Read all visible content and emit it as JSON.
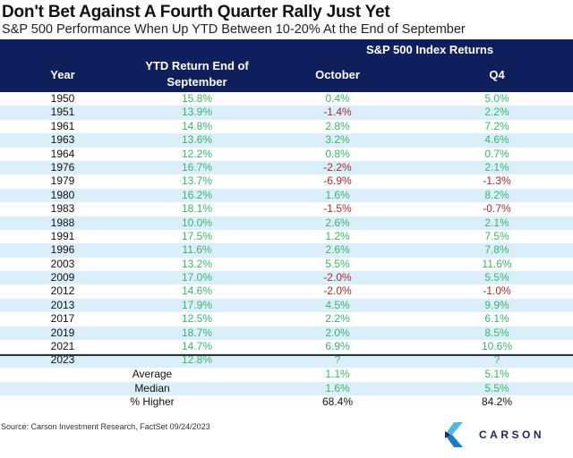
{
  "title": "Don't Bet Against A Fourth Quarter Rally Just Yet",
  "subtitle": "S&P 500 Performance When Up YTD Between 10-20% At the End of September",
  "header": {
    "group": "S&P 500 Index Returns",
    "year": "Year",
    "ytd_line1": "YTD Return End of",
    "ytd_line2": "September",
    "october": "October",
    "q4": "Q4"
  },
  "colors": {
    "header_bg": "#0f1f5c",
    "stripe": "#dbeffb",
    "positive": "#3db36b",
    "negative": "#a52a2a"
  },
  "chart_data": {
    "type": "table",
    "columns": [
      "Year",
      "YTD Return End of September",
      "October",
      "Q4"
    ],
    "rows": [
      [
        "1950",
        "15.8%",
        "0.4%",
        "5.0%"
      ],
      [
        "1951",
        "13.9%",
        "-1.4%",
        "2.2%"
      ],
      [
        "1961",
        "14.8%",
        "2.8%",
        "7.2%"
      ],
      [
        "1963",
        "13.6%",
        "3.2%",
        "4.6%"
      ],
      [
        "1964",
        "12.2%",
        "0.8%",
        "0.7%"
      ],
      [
        "1976",
        "16.7%",
        "-2.2%",
        "2.1%"
      ],
      [
        "1979",
        "13.7%",
        "-6.9%",
        "-1.3%"
      ],
      [
        "1980",
        "16.2%",
        "1.6%",
        "8.2%"
      ],
      [
        "1983",
        "18.1%",
        "-1.5%",
        "-0.7%"
      ],
      [
        "1988",
        "10.0%",
        "2.6%",
        "2.1%"
      ],
      [
        "1991",
        "17.5%",
        "1.2%",
        "7.5%"
      ],
      [
        "1996",
        "11.6%",
        "2.6%",
        "7.8%"
      ],
      [
        "2003",
        "13.2%",
        "5.5%",
        "11.6%"
      ],
      [
        "2009",
        "17.0%",
        "-2.0%",
        "5.5%"
      ],
      [
        "2012",
        "14.6%",
        "-2.0%",
        "-1.0%"
      ],
      [
        "2013",
        "17.9%",
        "4.5%",
        "9.9%"
      ],
      [
        "2017",
        "12.5%",
        "2.2%",
        "6.1%"
      ],
      [
        "2019",
        "18.7%",
        "2.0%",
        "8.5%"
      ],
      [
        "2021",
        "14.7%",
        "6.9%",
        "10.6%"
      ],
      [
        "2023",
        "12.8%",
        "?",
        "?"
      ]
    ],
    "summary": [
      {
        "label": "Average",
        "october": "1.1%",
        "q4": "5.1%",
        "colored": true
      },
      {
        "label": "Median",
        "october": "1.6%",
        "q4": "5.5%",
        "colored": true
      },
      {
        "label": "% Higher",
        "october": "68.4%",
        "q4": "84.2%",
        "colored": false
      }
    ]
  },
  "source": "Source: Carson Investment Research, FactSet 09/24/2023",
  "logo": {
    "text": "CARSON"
  }
}
